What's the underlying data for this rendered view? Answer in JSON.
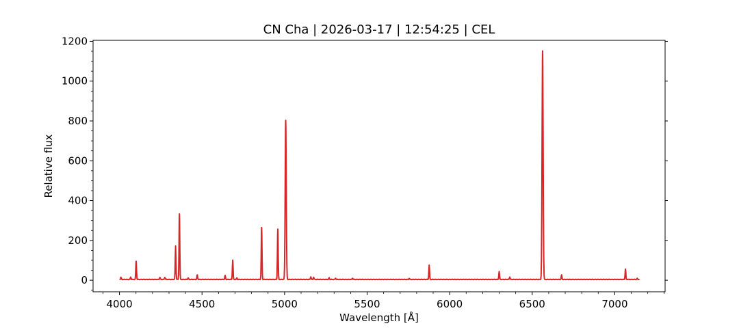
{
  "chart_data": {
    "type": "line",
    "title": "CN Cha | 2026-03-17 | 12:54:25 | CEL",
    "xlabel": "Wavelength [Å]",
    "ylabel": "Relative flux",
    "xlim": [
      3840,
      7305
    ],
    "ylim": [
      -58,
      1205
    ],
    "x_ticks": [
      4000,
      4500,
      5000,
      5500,
      6000,
      6500,
      7000
    ],
    "y_ticks": [
      0,
      200,
      400,
      600,
      800,
      1000,
      1200
    ],
    "x_minor_step": 100,
    "y_minor_step": 50,
    "grid": false,
    "series": [
      {
        "color": "#d62728",
        "x_range": [
          4000,
          7150
        ],
        "baseline": 4,
        "emission_lines": [
          {
            "x": 4009,
            "y": 15
          },
          {
            "x": 4068,
            "y": 16
          },
          {
            "x": 4101,
            "y": 95
          },
          {
            "x": 4245,
            "y": 14
          },
          {
            "x": 4275,
            "y": 14
          },
          {
            "x": 4340,
            "y": 172
          },
          {
            "x": 4363,
            "y": 333
          },
          {
            "x": 4416,
            "y": 12
          },
          {
            "x": 4471,
            "y": 27
          },
          {
            "x": 4640,
            "y": 24
          },
          {
            "x": 4686,
            "y": 101
          },
          {
            "x": 4711,
            "y": 12
          },
          {
            "x": 4861,
            "y": 265
          },
          {
            "x": 4959,
            "y": 257
          },
          {
            "x": 5007,
            "y": 803
          },
          {
            "x": 5159,
            "y": 17
          },
          {
            "x": 5176,
            "y": 15
          },
          {
            "x": 5270,
            "y": 12
          },
          {
            "x": 5309,
            "y": 10
          },
          {
            "x": 5412,
            "y": 10
          },
          {
            "x": 5755,
            "y": 9
          },
          {
            "x": 5876,
            "y": 76
          },
          {
            "x": 6300,
            "y": 44
          },
          {
            "x": 6364,
            "y": 16
          },
          {
            "x": 6563,
            "y": 1152
          },
          {
            "x": 6678,
            "y": 27
          },
          {
            "x": 7065,
            "y": 56
          },
          {
            "x": 7136,
            "y": 9
          }
        ]
      }
    ]
  }
}
